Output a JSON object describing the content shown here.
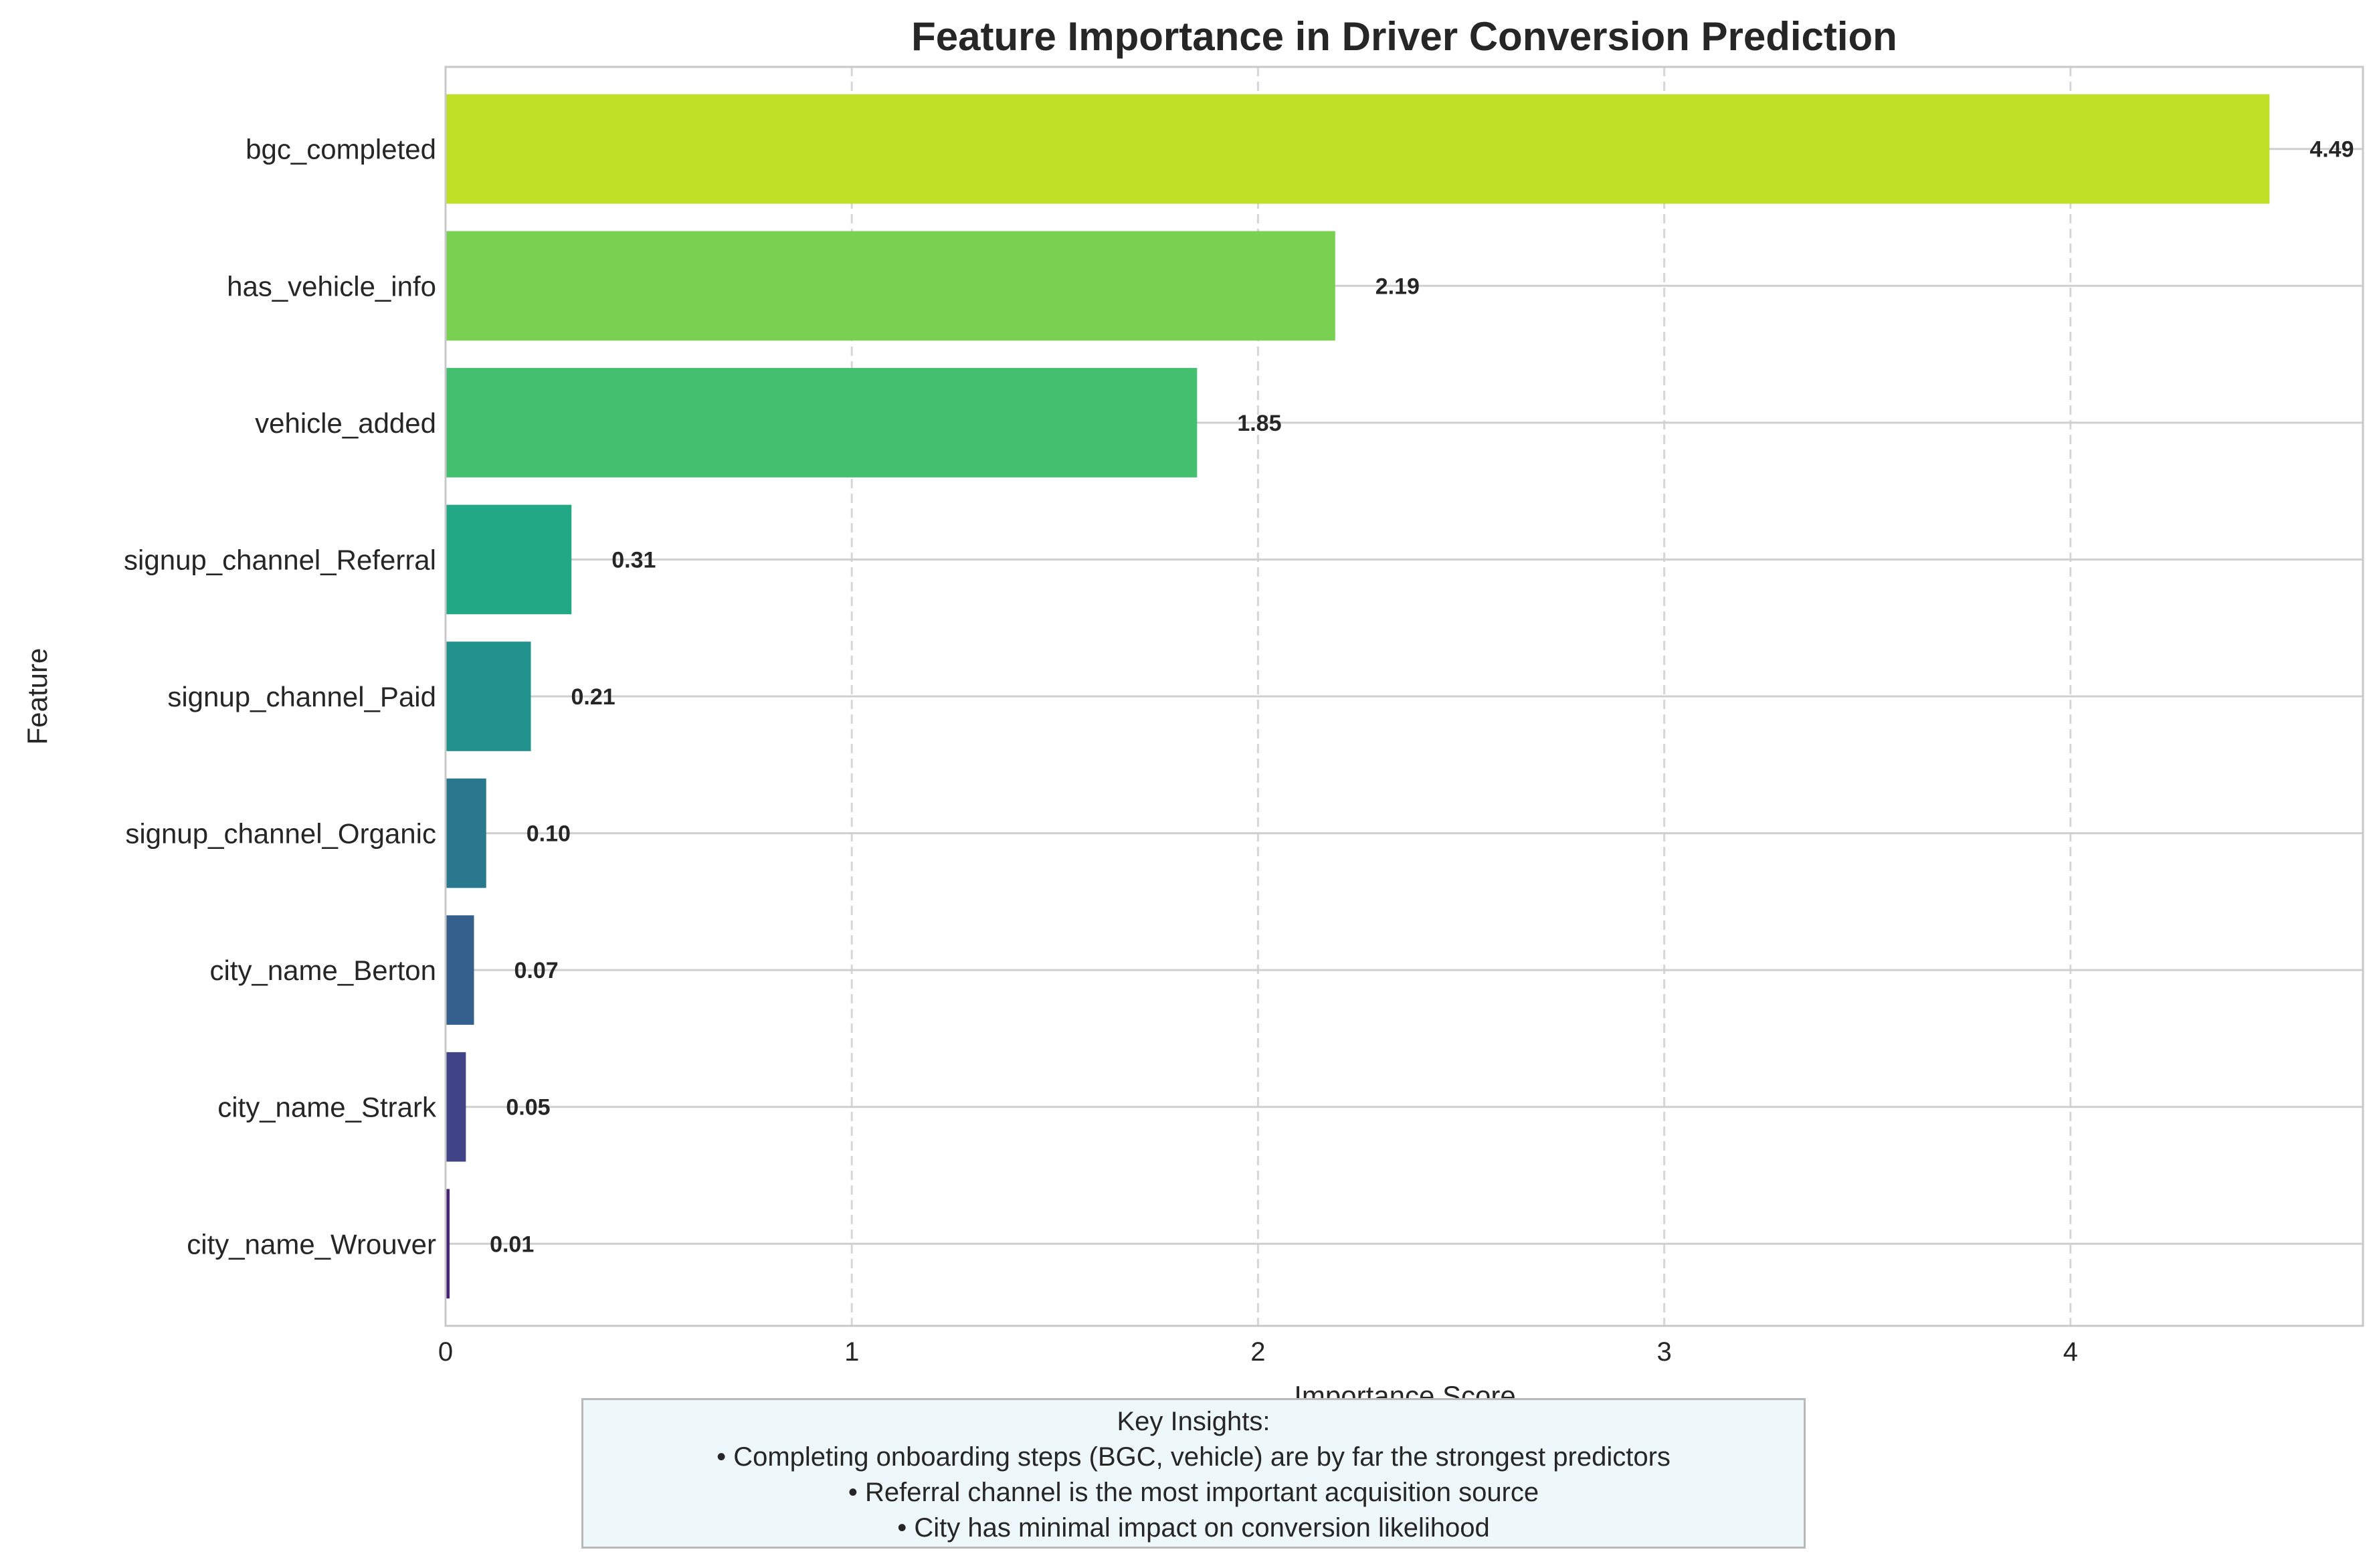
{
  "chart_data": {
    "type": "bar",
    "orientation": "horizontal",
    "title": "Feature Importance in Driver Conversion Prediction",
    "xlabel": "Importance Score",
    "ylabel": "Feature",
    "categories": [
      "bgc_completed",
      "has_vehicle_info",
      "vehicle_added",
      "signup_channel_Referral",
      "signup_channel_Paid",
      "signup_channel_Organic",
      "city_name_Berton",
      "city_name_Strark",
      "city_name_Wrouver"
    ],
    "values": [
      4.49,
      2.19,
      1.85,
      0.31,
      0.21,
      0.1,
      0.07,
      0.05,
      0.01
    ],
    "value_labels": [
      "4.49",
      "2.19",
      "1.85",
      "0.31",
      "0.21",
      "0.10",
      "0.07",
      "0.05",
      "0.01"
    ],
    "colors": [
      "#bddf26",
      "#7ad151",
      "#44bf70",
      "#22a884",
      "#21918c",
      "#2a788e",
      "#355f8d",
      "#414487",
      "#482475"
    ],
    "xlim": [
      0,
      4.72
    ],
    "xticks": [
      0,
      1,
      2,
      3,
      4
    ],
    "grid": {
      "x": true,
      "y": true,
      "x_style": "dashed",
      "y_style": "solid"
    }
  },
  "insights": {
    "title": "Key Insights:",
    "lines": [
      "• Completing onboarding steps (BGC, vehicle) are by far the strongest predictors",
      "• Referral channel is the most important acquisition source",
      "• City has minimal impact on conversion likelihood"
    ]
  }
}
